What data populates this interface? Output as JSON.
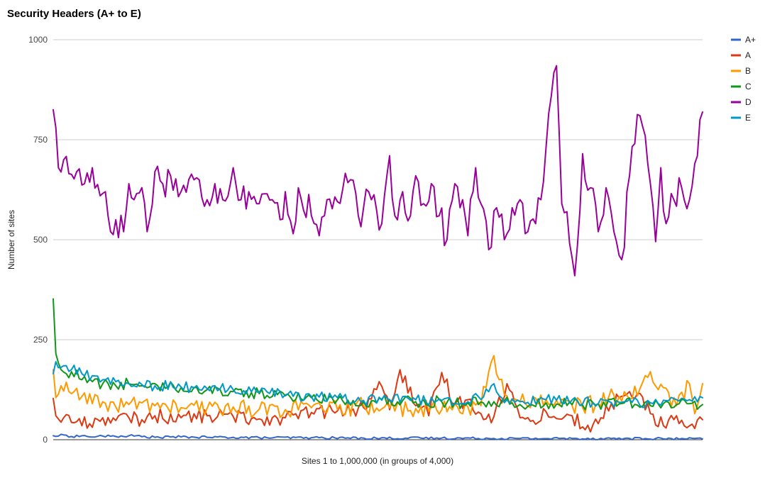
{
  "chart_data": {
    "type": "line",
    "title": "Security Headers (A+ to E)",
    "xlabel": "Sites 1 to 1,000,000 (in groups of 4,000)",
    "ylabel": "Number of sites",
    "ylim": [
      0,
      1000
    ],
    "yticks": [
      0,
      250,
      500,
      750,
      1000
    ],
    "x_range": [
      1,
      250
    ],
    "grid": true,
    "legend_position": "right",
    "series": [
      {
        "name": "A+",
        "color": "#3366cc",
        "keypoints": [
          [
            1,
            10
          ],
          [
            3,
            9
          ],
          [
            5,
            12
          ],
          [
            8,
            8
          ],
          [
            12,
            10
          ],
          [
            15,
            7
          ],
          [
            20,
            9
          ],
          [
            25,
            8
          ],
          [
            30,
            10
          ],
          [
            40,
            6
          ],
          [
            50,
            7
          ],
          [
            60,
            6
          ],
          [
            70,
            6
          ],
          [
            80,
            5
          ],
          [
            100,
            5
          ],
          [
            120,
            4
          ],
          [
            150,
            4
          ],
          [
            180,
            3
          ],
          [
            200,
            3
          ],
          [
            220,
            3
          ],
          [
            250,
            2
          ]
        ]
      },
      {
        "name": "A",
        "color": "#dc3912",
        "keypoints": [
          [
            1,
            103
          ],
          [
            2,
            60
          ],
          [
            5,
            55
          ],
          [
            10,
            45
          ],
          [
            15,
            40
          ],
          [
            20,
            55
          ],
          [
            25,
            48
          ],
          [
            30,
            55
          ],
          [
            35,
            50
          ],
          [
            40,
            60
          ],
          [
            50,
            55
          ],
          [
            60,
            60
          ],
          [
            70,
            58
          ],
          [
            80,
            52
          ],
          [
            90,
            55
          ],
          [
            100,
            68
          ],
          [
            110,
            72
          ],
          [
            115,
            70
          ],
          [
            120,
            80
          ],
          [
            126,
            145
          ],
          [
            130,
            75
          ],
          [
            134,
            175
          ],
          [
            140,
            85
          ],
          [
            145,
            60
          ],
          [
            150,
            168
          ],
          [
            155,
            90
          ],
          [
            160,
            100
          ],
          [
            165,
            65
          ],
          [
            170,
            58
          ],
          [
            175,
            140
          ],
          [
            180,
            55
          ],
          [
            185,
            48
          ],
          [
            190,
            70
          ],
          [
            195,
            52
          ],
          [
            200,
            60
          ],
          [
            205,
            25
          ],
          [
            210,
            40
          ],
          [
            215,
            90
          ],
          [
            220,
            110
          ],
          [
            225,
            115
          ],
          [
            230,
            65
          ],
          [
            235,
            35
          ],
          [
            240,
            60
          ],
          [
            244,
            30
          ],
          [
            247,
            28
          ],
          [
            250,
            50
          ]
        ]
      },
      {
        "name": "B",
        "color": "#ff9900",
        "keypoints": [
          [
            1,
            175
          ],
          [
            2,
            105
          ],
          [
            4,
            135
          ],
          [
            8,
            115
          ],
          [
            12,
            108
          ],
          [
            16,
            90
          ],
          [
            20,
            95
          ],
          [
            25,
            82
          ],
          [
            30,
            88
          ],
          [
            35,
            92
          ],
          [
            40,
            85
          ],
          [
            50,
            80
          ],
          [
            60,
            78
          ],
          [
            70,
            82
          ],
          [
            80,
            76
          ],
          [
            90,
            75
          ],
          [
            100,
            80
          ],
          [
            110,
            75
          ],
          [
            120,
            85
          ],
          [
            130,
            80
          ],
          [
            140,
            78
          ],
          [
            150,
            75
          ],
          [
            160,
            82
          ],
          [
            165,
            85
          ],
          [
            168,
            170
          ],
          [
            170,
            210
          ],
          [
            172,
            150
          ],
          [
            175,
            110
          ],
          [
            180,
            95
          ],
          [
            190,
            100
          ],
          [
            200,
            85
          ],
          [
            210,
            90
          ],
          [
            220,
            120
          ],
          [
            225,
            110
          ],
          [
            230,
            170
          ],
          [
            235,
            130
          ],
          [
            240,
            85
          ],
          [
            245,
            140
          ],
          [
            247,
            65
          ],
          [
            250,
            140
          ]
        ]
      },
      {
        "name": "C",
        "color": "#109618",
        "keypoints": [
          [
            1,
            352
          ],
          [
            2,
            215
          ],
          [
            4,
            175
          ],
          [
            6,
            165
          ],
          [
            8,
            170
          ],
          [
            12,
            150
          ],
          [
            16,
            145
          ],
          [
            20,
            140
          ],
          [
            25,
            135
          ],
          [
            30,
            140
          ],
          [
            35,
            135
          ],
          [
            40,
            140
          ],
          [
            45,
            132
          ],
          [
            50,
            130
          ],
          [
            60,
            125
          ],
          [
            70,
            120
          ],
          [
            80,
            115
          ],
          [
            90,
            110
          ],
          [
            100,
            105
          ],
          [
            110,
            100
          ],
          [
            120,
            95
          ],
          [
            130,
            100
          ],
          [
            140,
            95
          ],
          [
            150,
            95
          ],
          [
            160,
            92
          ],
          [
            170,
            95
          ],
          [
            180,
            88
          ],
          [
            190,
            92
          ],
          [
            200,
            88
          ],
          [
            210,
            90
          ],
          [
            220,
            92
          ],
          [
            230,
            85
          ],
          [
            240,
            88
          ],
          [
            245,
            90
          ],
          [
            250,
            88
          ]
        ]
      },
      {
        "name": "D",
        "color": "#990099",
        "keypoints": [
          [
            1,
            825
          ],
          [
            2,
            780
          ],
          [
            3,
            680
          ],
          [
            5,
            700
          ],
          [
            7,
            665
          ],
          [
            10,
            670
          ],
          [
            13,
            640
          ],
          [
            16,
            680
          ],
          [
            19,
            610
          ],
          [
            21,
            620
          ],
          [
            23,
            520
          ],
          [
            25,
            550
          ],
          [
            28,
            520
          ],
          [
            30,
            640
          ],
          [
            32,
            600
          ],
          [
            35,
            630
          ],
          [
            37,
            520
          ],
          [
            40,
            670
          ],
          [
            43,
            640
          ],
          [
            46,
            660
          ],
          [
            50,
            620
          ],
          [
            55,
            650
          ],
          [
            60,
            600
          ],
          [
            63,
            640
          ],
          [
            66,
            600
          ],
          [
            70,
            680
          ],
          [
            73,
            600
          ],
          [
            76,
            620
          ],
          [
            80,
            590
          ],
          [
            85,
            600
          ],
          [
            88,
            550
          ],
          [
            90,
            620
          ],
          [
            93,
            515
          ],
          [
            95,
            630
          ],
          [
            100,
            560
          ],
          [
            103,
            510
          ],
          [
            106,
            600
          ],
          [
            110,
            595
          ],
          [
            115,
            650
          ],
          [
            118,
            560
          ],
          [
            120,
            580
          ],
          [
            123,
            600
          ],
          [
            127,
            540
          ],
          [
            130,
            710
          ],
          [
            132,
            560
          ],
          [
            135,
            620
          ],
          [
            138,
            560
          ],
          [
            140,
            660
          ],
          [
            143,
            590
          ],
          [
            146,
            640
          ],
          [
            149,
            560
          ],
          [
            152,
            500
          ],
          [
            155,
            640
          ],
          [
            158,
            600
          ],
          [
            160,
            510
          ],
          [
            163,
            680
          ],
          [
            165,
            590
          ],
          [
            168,
            475
          ],
          [
            171,
            580
          ],
          [
            174,
            500
          ],
          [
            177,
            580
          ],
          [
            180,
            600
          ],
          [
            183,
            520
          ],
          [
            186,
            540
          ],
          [
            188,
            600
          ],
          [
            192,
            860
          ],
          [
            194,
            935
          ],
          [
            196,
            590
          ],
          [
            198,
            570
          ],
          [
            201,
            410
          ],
          [
            204,
            715
          ],
          [
            207,
            630
          ],
          [
            210,
            520
          ],
          [
            213,
            630
          ],
          [
            216,
            520
          ],
          [
            219,
            450
          ],
          [
            222,
            660
          ],
          [
            224,
            740
          ],
          [
            226,
            810
          ],
          [
            228,
            760
          ],
          [
            230,
            640
          ],
          [
            232,
            495
          ],
          [
            234,
            680
          ],
          [
            236,
            540
          ],
          [
            239,
            600
          ],
          [
            242,
            630
          ],
          [
            245,
            600
          ],
          [
            247,
            690
          ],
          [
            249,
            800
          ]
        ]
      },
      {
        "name": "E",
        "color": "#0099c6",
        "keypoints": [
          [
            1,
            165
          ],
          [
            2,
            195
          ],
          [
            3,
            180
          ],
          [
            5,
            185
          ],
          [
            8,
            175
          ],
          [
            12,
            165
          ],
          [
            16,
            160
          ],
          [
            20,
            150
          ],
          [
            25,
            145
          ],
          [
            30,
            140
          ],
          [
            35,
            138
          ],
          [
            40,
            135
          ],
          [
            50,
            132
          ],
          [
            60,
            128
          ],
          [
            70,
            125
          ],
          [
            80,
            118
          ],
          [
            90,
            112
          ],
          [
            100,
            108
          ],
          [
            110,
            105
          ],
          [
            120,
            98
          ],
          [
            130,
            100
          ],
          [
            140,
            100
          ],
          [
            150,
            98
          ],
          [
            160,
            95
          ],
          [
            168,
            120
          ],
          [
            170,
            140
          ],
          [
            172,
            110
          ],
          [
            175,
            100
          ],
          [
            180,
            95
          ],
          [
            190,
            100
          ],
          [
            200,
            100
          ],
          [
            210,
            90
          ],
          [
            220,
            95
          ],
          [
            230,
            92
          ],
          [
            240,
            100
          ],
          [
            245,
            100
          ],
          [
            250,
            105
          ]
        ]
      }
    ]
  }
}
